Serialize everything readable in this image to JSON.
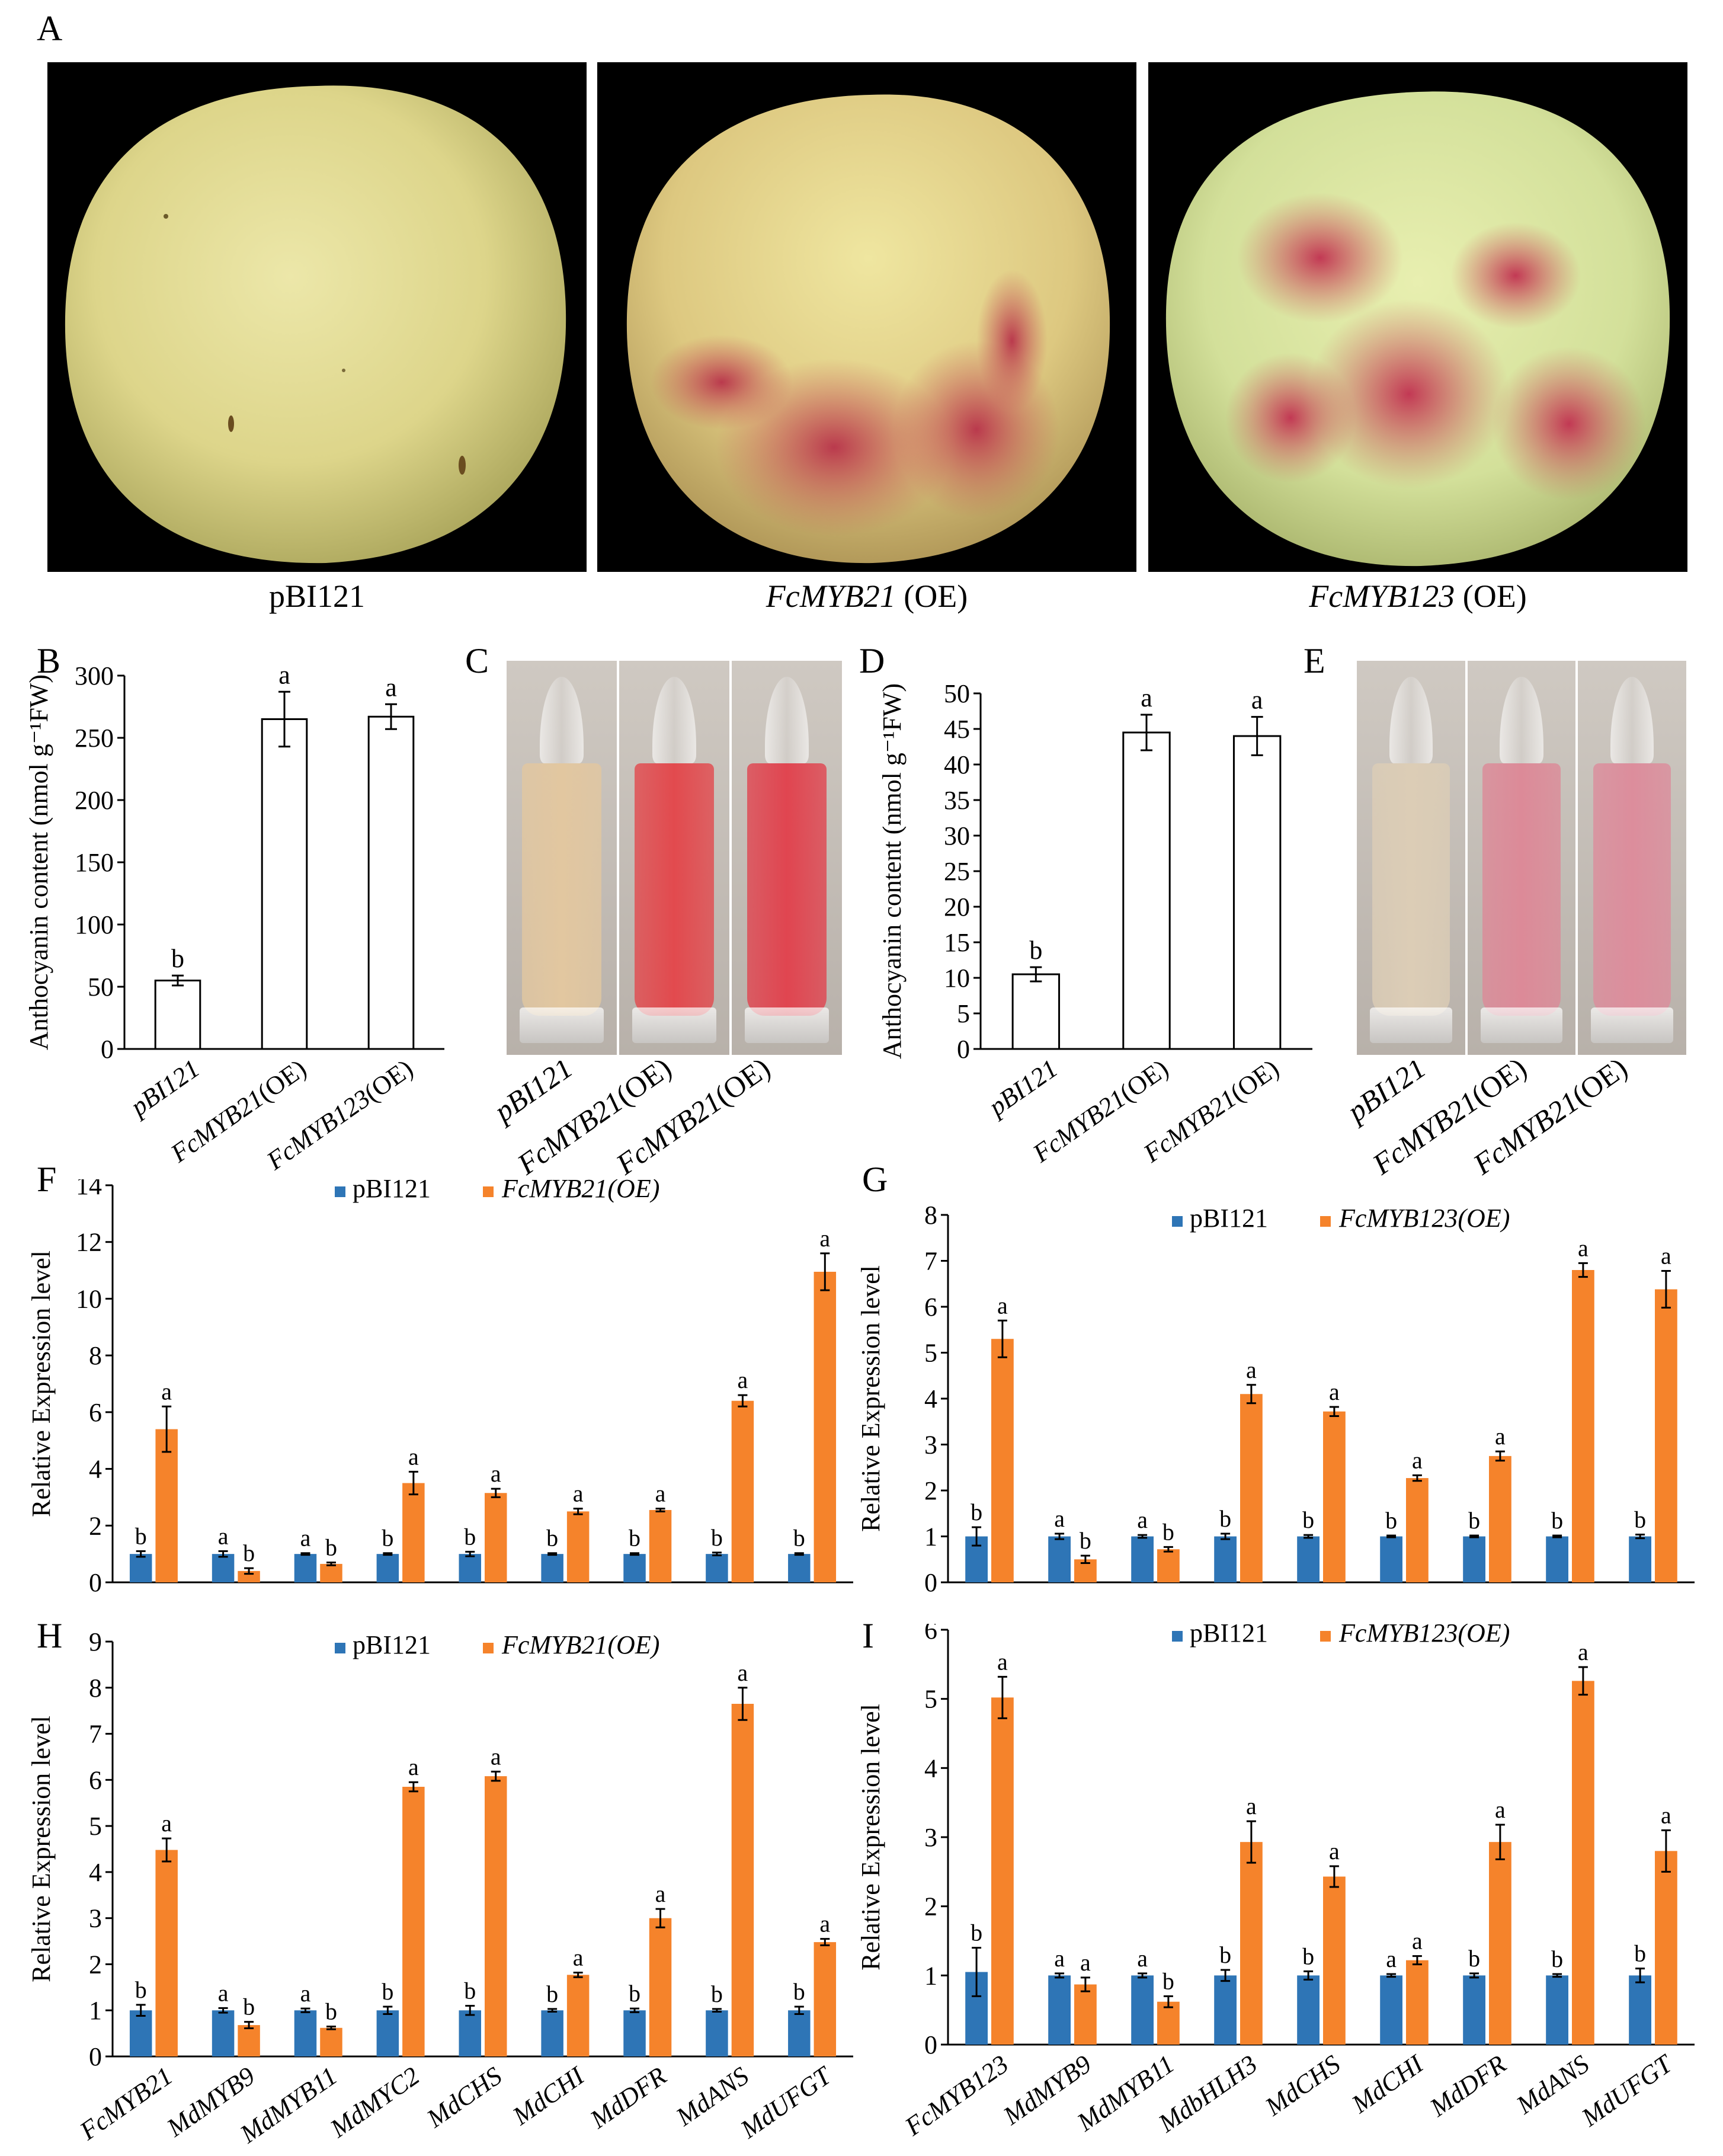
{
  "panel_labels": {
    "A": "A",
    "B": "B",
    "C": "C",
    "D": "D",
    "E": "E",
    "F": "F",
    "G": "G",
    "H": "H",
    "I": "I"
  },
  "photos": [
    {
      "caption_plain": "pBI121",
      "caption_italic": "",
      "caption_suffix": ""
    },
    {
      "caption_plain": "",
      "caption_italic": "FcMYB21",
      "caption_suffix": " (OE)"
    },
    {
      "caption_plain": "",
      "caption_italic": "FcMYB123",
      "caption_suffix": " (OE)"
    }
  ],
  "tubes_C": {
    "labels": [
      "pBI121",
      "FcMYB21(OE)",
      "FcMYB21(OE)"
    ],
    "colors": [
      "#e2c7a0",
      "#e24a4e",
      "#e04550"
    ]
  },
  "tubes_E": {
    "labels": [
      "pBI121",
      "FcMYB21(OE)",
      "FcMYB21(OE)"
    ],
    "colors": [
      "#dccdb6",
      "#dc8a98",
      "#dc8d9c"
    ]
  },
  "colors": {
    "blue": "#2e75b6",
    "orange": "#f5832b",
    "bar_outline": "#000000"
  },
  "chart_data": [
    {
      "id": "B",
      "type": "bar",
      "categories": [
        "pBI121",
        "FcMYB21(OE)",
        "FcMYB123(OE)"
      ],
      "values": [
        55,
        265,
        267
      ],
      "errors": [
        4,
        22,
        10
      ],
      "sig": [
        "b",
        "a",
        "a"
      ],
      "ylabel": "Anthocyanin content (nmol g⁻¹FW)",
      "ylim": [
        0,
        300
      ],
      "yticks": [
        0,
        50,
        100,
        150,
        200,
        250,
        300
      ]
    },
    {
      "id": "D",
      "type": "bar",
      "categories": [
        "pBI121",
        "FcMYB21(OE)",
        "FcMYB21(OE)"
      ],
      "values": [
        10.5,
        44.5,
        44
      ],
      "errors": [
        1,
        2.5,
        2.7
      ],
      "sig": [
        "b",
        "a",
        "a"
      ],
      "ylabel": "Anthocyanin content (nmol g⁻¹FW)",
      "ylim": [
        0,
        50
      ],
      "yticks": [
        0,
        5,
        10,
        15,
        20,
        25,
        30,
        35,
        40,
        45,
        50
      ]
    },
    {
      "id": "F",
      "type": "bar",
      "categories": [
        "FcMYB21",
        "MdMYB9",
        "MdMYB11",
        "MdMYC2",
        "MdCHS",
        "MdCHI",
        "MdDFR",
        "MdANS",
        "MdUFGT"
      ],
      "show_categories": false,
      "legend": [
        "pBI121",
        "FcMYB21(OE)"
      ],
      "series": [
        {
          "name": "pBI121",
          "values": [
            1,
            1,
            1,
            1,
            1,
            1,
            1,
            1,
            1
          ],
          "errors": [
            0.1,
            0.1,
            0.03,
            0.03,
            0.08,
            0.03,
            0.03,
            0.05,
            0.03
          ],
          "sig": [
            "b",
            "a",
            "a",
            "b",
            "b",
            "b",
            "b",
            "b",
            "b"
          ]
        },
        {
          "name": "FcMYB21(OE)",
          "values": [
            5.4,
            0.4,
            0.65,
            3.5,
            3.15,
            2.5,
            2.55,
            6.4,
            10.95
          ],
          "errors": [
            0.8,
            0.1,
            0.05,
            0.4,
            0.15,
            0.1,
            0.05,
            0.2,
            0.65
          ],
          "sig": [
            "a",
            "b",
            "b",
            "a",
            "a",
            "a",
            "a",
            "a",
            "a"
          ]
        }
      ],
      "ylabel": "Relative Expression level",
      "ylim": [
        0,
        14
      ],
      "yticks": [
        0,
        2,
        4,
        6,
        8,
        10,
        12,
        14
      ]
    },
    {
      "id": "G",
      "type": "bar",
      "categories": [
        "FcMYB123",
        "MdMYB9",
        "MdMYB11",
        "MdbHLH3",
        "MdCHS",
        "MdCHI",
        "MdDFR",
        "MdANS",
        "MdUFGT"
      ],
      "show_categories": false,
      "legend": [
        "pBI121",
        "FcMYB123(OE)"
      ],
      "series": [
        {
          "name": "pBI121",
          "values": [
            1,
            1,
            1,
            1,
            1,
            1,
            1,
            1,
            1
          ],
          "errors": [
            0.2,
            0.06,
            0.03,
            0.06,
            0.03,
            0.02,
            0.02,
            0.02,
            0.04
          ],
          "sig": [
            "b",
            "a",
            "a",
            "b",
            "b",
            "b",
            "b",
            "b",
            "b"
          ]
        },
        {
          "name": "FcMYB123(OE)",
          "values": [
            5.3,
            0.5,
            0.72,
            4.1,
            3.72,
            2.27,
            2.75,
            6.8,
            6.38
          ],
          "errors": [
            0.4,
            0.08,
            0.05,
            0.2,
            0.1,
            0.06,
            0.1,
            0.15,
            0.4
          ],
          "sig": [
            "a",
            "b",
            "b",
            "a",
            "a",
            "a",
            "a",
            "a",
            "a"
          ]
        }
      ],
      "ylabel": "Relative Expression level",
      "ylim": [
        0,
        8
      ],
      "yticks": [
        0,
        1,
        2,
        3,
        4,
        5,
        6,
        7,
        8
      ]
    },
    {
      "id": "H",
      "type": "bar",
      "categories": [
        "FcMYB21",
        "MdMYB9",
        "MdMYB11",
        "MdMYC2",
        "MdCHS",
        "MdCHI",
        "MdDFR",
        "MdANS",
        "MdUFGT"
      ],
      "show_categories": true,
      "legend": [
        "pBI121",
        "FcMYB21(OE)"
      ],
      "series": [
        {
          "name": "pBI121",
          "values": [
            1,
            1,
            1,
            1,
            1,
            1,
            1,
            1,
            1
          ],
          "errors": [
            0.12,
            0.05,
            0.04,
            0.08,
            0.1,
            0.03,
            0.04,
            0.03,
            0.08
          ],
          "sig": [
            "b",
            "a",
            "a",
            "b",
            "b",
            "b",
            "b",
            "b",
            "b"
          ]
        },
        {
          "name": "FcMYB21(OE)",
          "values": [
            4.48,
            0.68,
            0.62,
            5.85,
            6.08,
            1.77,
            3.0,
            7.65,
            2.48
          ],
          "errors": [
            0.25,
            0.07,
            0.03,
            0.1,
            0.1,
            0.05,
            0.2,
            0.35,
            0.07
          ],
          "sig": [
            "a",
            "b",
            "b",
            "a",
            "a",
            "a",
            "a",
            "a",
            "a"
          ]
        }
      ],
      "ylabel": "Relative Expression level",
      "ylim": [
        0,
        9
      ],
      "yticks": [
        0,
        1,
        2,
        3,
        4,
        5,
        6,
        7,
        8,
        9
      ]
    },
    {
      "id": "I",
      "type": "bar",
      "categories": [
        "FcMYB123",
        "MdMYB9",
        "MdMYB11",
        "MdbHLH3",
        "MdCHS",
        "MdCHI",
        "MdDFR",
        "MdANS",
        "MdUFGT"
      ],
      "show_categories": true,
      "legend": [
        "pBI121",
        "FcMYB123(OE)"
      ],
      "series": [
        {
          "name": "pBI121",
          "values": [
            1.05,
            1.0,
            1.0,
            1.0,
            1.0,
            1.0,
            1.0,
            1.0,
            1.0
          ],
          "errors": [
            0.35,
            0.03,
            0.03,
            0.08,
            0.06,
            0.02,
            0.03,
            0.02,
            0.1
          ],
          "sig": [
            "b",
            "a",
            "a",
            "b",
            "b",
            "a",
            "b",
            "b",
            "b"
          ]
        },
        {
          "name": "FcMYB123(OE)",
          "values": [
            5.02,
            0.87,
            0.62,
            2.93,
            2.43,
            1.22,
            2.93,
            5.26,
            2.8
          ],
          "errors": [
            0.3,
            0.1,
            0.08,
            0.3,
            0.15,
            0.06,
            0.25,
            0.2,
            0.3
          ],
          "sig": [
            "a",
            "a",
            "b",
            "a",
            "a",
            "a",
            "a",
            "a",
            "a"
          ]
        }
      ],
      "ylabel": "Relative Expression level",
      "ylim": [
        0,
        6
      ],
      "yticks": [
        0,
        1,
        2,
        3,
        4,
        5,
        6
      ]
    }
  ]
}
